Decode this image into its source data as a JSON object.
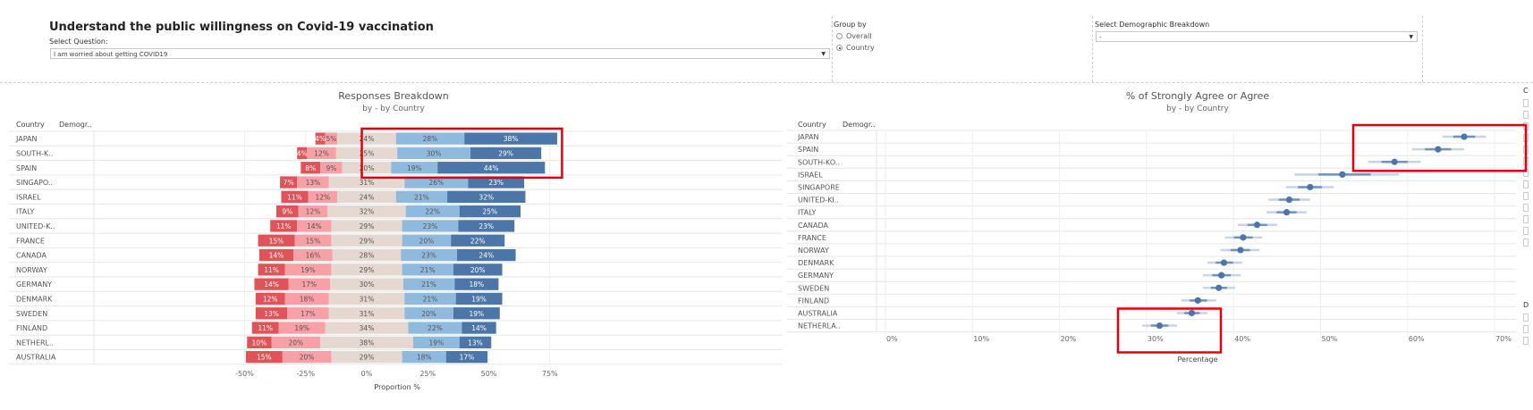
{
  "header": {
    "title": "Understand the public willingness on Covid-19 vaccination",
    "question_label": "Select Question:",
    "question_value": "I am worried about getting COVID19",
    "group_by_label": "Group by",
    "group_by_options": [
      "Overall",
      "Country"
    ],
    "group_by_selected": "Country",
    "demographic_label": "Select Demographic Breakdown",
    "demographic_value": "-",
    "side_labels": [
      "C",
      "D"
    ]
  },
  "colors": {
    "strongly_disagree": "#e05459",
    "disagree": "#f7a0a6",
    "neutral": "#e4d8d1",
    "agree": "#8fbade",
    "strongly_agree": "#4b76a7",
    "point": "#4b76a7",
    "highlight": "#e3000f"
  },
  "chart_data": [
    {
      "type": "bar",
      "title": "Responses Breakdown",
      "subtitle": "by - by Country",
      "column_headers": [
        "Country",
        "Demogr.."
      ],
      "xlabel": "Proportion %",
      "x_ticks": [
        "-50%",
        "-25%",
        "0%",
        "25%",
        "50%",
        "75%"
      ],
      "x_tick_values": [
        -50,
        -25,
        0,
        25,
        50,
        75
      ],
      "xlim": [
        -50,
        75
      ],
      "categories": [
        "JAPAN",
        "SOUTH-K..",
        "SPAIN",
        "SINGAPO..",
        "ISRAEL",
        "ITALY",
        "UNITED-K..",
        "FRANCE",
        "CANADA",
        "NORWAY",
        "GERMANY",
        "DENMARK",
        "SWEDEN",
        "FINLAND",
        "NETHERL..",
        "AUSTRALIA"
      ],
      "series": [
        {
          "key": "strongly_disagree",
          "values": [
            4,
            4,
            8,
            7,
            11,
            9,
            11,
            15,
            14,
            11,
            14,
            12,
            13,
            11,
            10,
            15
          ]
        },
        {
          "key": "disagree",
          "values": [
            5,
            12,
            9,
            13,
            12,
            12,
            14,
            15,
            16,
            19,
            17,
            18,
            17,
            19,
            20,
            20
          ]
        },
        {
          "key": "neutral",
          "values": [
            24,
            25,
            20,
            31,
            24,
            32,
            29,
            29,
            28,
            29,
            30,
            31,
            31,
            34,
            38,
            29
          ]
        },
        {
          "key": "agree",
          "values": [
            28,
            30,
            19,
            26,
            21,
            22,
            23,
            20,
            23,
            21,
            21,
            21,
            20,
            22,
            19,
            18
          ]
        },
        {
          "key": "strongly_agree",
          "values": [
            38,
            29,
            44,
            23,
            32,
            25,
            23,
            22,
            24,
            20,
            18,
            19,
            19,
            14,
            13,
            17
          ]
        }
      ],
      "highlight_rows": [
        0,
        2
      ]
    },
    {
      "type": "scatter",
      "title": "% of Strongly Agree or Agree",
      "subtitle": "by - by Country",
      "column_headers": [
        "Country",
        "Demogr.."
      ],
      "xlabel": "Percentage",
      "x_ticks": [
        "0%",
        "10%",
        "20%",
        "30%",
        "40%",
        "50%",
        "60%",
        "70%"
      ],
      "x_tick_values": [
        0,
        10,
        20,
        30,
        40,
        50,
        60,
        70
      ],
      "xlim": [
        0,
        72
      ],
      "categories": [
        "JAPAN",
        "SPAIN",
        "SOUTH-KO..",
        "ISRAEL",
        "SINGAPORE",
        "UNITED-KI..",
        "ITALY",
        "CANADA",
        "FRANCE",
        "NORWAY",
        "DENMARK",
        "GERMANY",
        "SWEDEN",
        "FINLAND",
        "AUSTRALIA",
        "NETHERLA.."
      ],
      "values": [
        66.5,
        63.5,
        58.5,
        52.5,
        48.8,
        46.4,
        46.1,
        42.7,
        41.1,
        40.8,
        38.9,
        38.6,
        38.3,
        35.9,
        35.2,
        31.5
      ],
      "ci_low": [
        64,
        60.5,
        55.5,
        47,
        46,
        44,
        43.8,
        40.5,
        39,
        38.5,
        37,
        36.5,
        36.5,
        34,
        33.5,
        29.5
      ],
      "ci_high": [
        69,
        66.5,
        61.5,
        59,
        51.5,
        48.8,
        48.4,
        45,
        43.3,
        43,
        41,
        40.8,
        40.2,
        38,
        37,
        33.5
      ],
      "highlight_rows_top": [
        0,
        2
      ],
      "highlight_rows_bottom": [
        15
      ]
    }
  ]
}
